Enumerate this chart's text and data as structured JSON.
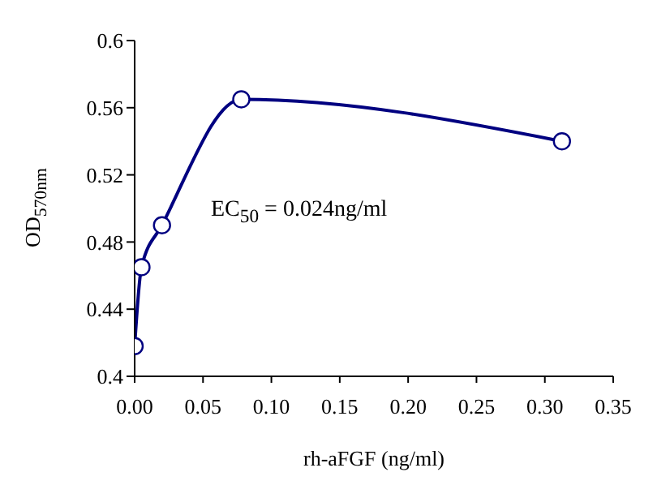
{
  "chart_data": {
    "type": "line",
    "xlabel": "rh-aFGF (ng/ml)",
    "ylabel": "OD$_{570nm}$",
    "annotations": [
      "EC$_{50}$ = 0.024ng/ml"
    ],
    "x": [
      0,
      0.005,
      0.02,
      0.078,
      0.3125
    ],
    "series": [
      {
        "color": "#000080",
        "values": [
          0.418,
          0.465,
          0.49,
          0.565,
          0.54
        ]
      }
    ],
    "xlim": [
      0,
      0.35
    ],
    "xticks": [
      {
        "value": 0,
        "label": "0.00"
      },
      0.05,
      {
        "value": 0.1,
        "label": "0.10"
      },
      0.15,
      {
        "value": 0.2,
        "label": "0.20"
      },
      0.25,
      {
        "value": 0.3,
        "label": "0.30"
      },
      0.35
    ],
    "ylim": [
      0.4,
      0.6
    ],
    "yticks": [
      0.4,
      0.44,
      0.48,
      0.52,
      0.56,
      0.6
    ],
    "marker": "circle",
    "line_style": "solid",
    "grid": false,
    "legend": false
  }
}
